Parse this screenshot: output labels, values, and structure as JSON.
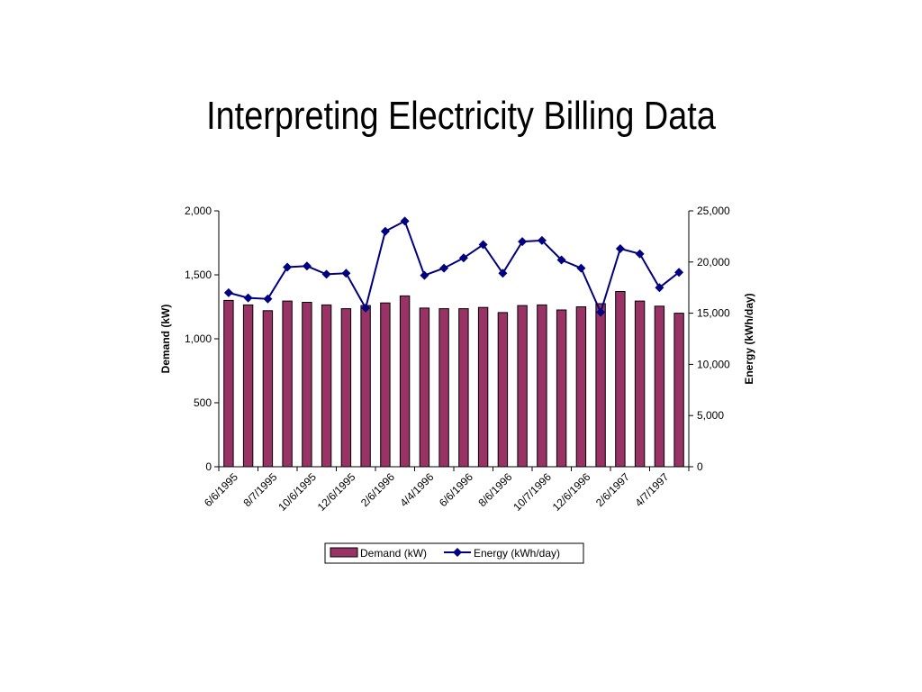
{
  "slide": {
    "title": "Interpreting Electricity Billing Data"
  },
  "colors": {
    "demand_bar": "#993366",
    "energy_line": "#000080"
  },
  "chart_data": {
    "type": "bar",
    "grid": false,
    "legend_position": "bottom",
    "xlabel": "",
    "ylabel": "Demand (kW)",
    "y2label": "Energy (kWh/day)",
    "ylim": [
      0,
      2000
    ],
    "y2lim": [
      0,
      25000
    ],
    "yticks": [
      "0",
      "500",
      "1,000",
      "1,500",
      "2,000"
    ],
    "y2ticks": [
      "0",
      "5,000",
      "10,000",
      "15,000",
      "20,000",
      "25,000"
    ],
    "tick_labels": [
      "6/6/1995",
      "8/7/1995",
      "10/6/1995",
      "12/6/1995",
      "2/6/1996",
      "4/4/1996",
      "6/6/1996",
      "8/6/1996",
      "10/7/1996",
      "12/6/1996",
      "2/6/1997",
      "4/7/1997"
    ],
    "point_count": 24,
    "series": [
      {
        "name": "Demand (kW)",
        "type": "bar",
        "axis": "left",
        "values": [
          1300,
          1265,
          1220,
          1295,
          1285,
          1265,
          1235,
          1260,
          1280,
          1335,
          1240,
          1235,
          1235,
          1245,
          1205,
          1260,
          1265,
          1225,
          1250,
          1275,
          1370,
          1295,
          1255,
          1200
        ]
      },
      {
        "name": "Energy (kWh/day)",
        "type": "line",
        "axis": "right",
        "values": [
          17000,
          16500,
          16400,
          19500,
          19600,
          18800,
          18900,
          15500,
          23000,
          24000,
          18700,
          19400,
          20400,
          21700,
          18900,
          22000,
          22100,
          20200,
          19400,
          15100,
          21300,
          20800,
          17500,
          19000
        ]
      }
    ]
  }
}
